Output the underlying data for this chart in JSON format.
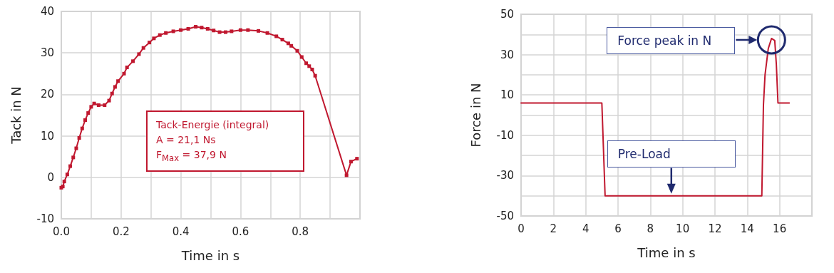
{
  "chart_data": [
    {
      "type": "line",
      "xlabel": "Time in s",
      "ylabel": "Tack in N",
      "x": [
        0.0,
        0.005,
        0.01,
        0.02,
        0.03,
        0.04,
        0.05,
        0.06,
        0.07,
        0.08,
        0.09,
        0.1,
        0.11,
        0.125,
        0.145,
        0.16,
        0.17,
        0.18,
        0.19,
        0.21,
        0.22,
        0.24,
        0.26,
        0.275,
        0.295,
        0.31,
        0.33,
        0.35,
        0.375,
        0.4,
        0.425,
        0.45,
        0.47,
        0.49,
        0.51,
        0.53,
        0.55,
        0.57,
        0.6,
        0.625,
        0.66,
        0.69,
        0.72,
        0.74,
        0.76,
        0.77,
        0.79,
        0.805,
        0.82,
        0.83,
        0.84,
        0.85,
        0.955,
        0.97,
        0.99
      ],
      "series": [
        {
          "color": "#c0182f",
          "values": [
            -2.5,
            -2.2,
            -1,
            0.7,
            2.7,
            4.8,
            7,
            9.5,
            11.8,
            13.8,
            15.5,
            17,
            17.8,
            17.4,
            17.4,
            18.5,
            20.2,
            21.8,
            23.2,
            25,
            26.5,
            28,
            29.7,
            31.2,
            32.5,
            33.5,
            34.3,
            34.8,
            35.2,
            35.5,
            35.8,
            36.3,
            36.1,
            35.8,
            35.4,
            35,
            35,
            35.2,
            35.5,
            35.5,
            35.3,
            34.8,
            34,
            33.2,
            32.3,
            31.7,
            30.5,
            29,
            27.5,
            26.8,
            26,
            24.5,
            0.5,
            3.8,
            4.5
          ]
        }
      ],
      "xlim": [
        0,
        1
      ],
      "xticks": [
        {
          "value": 0,
          "label": "0.0"
        },
        {
          "value": 0.1,
          "label": null
        },
        {
          "value": 0.2,
          "label": "0.2"
        },
        {
          "value": 0.3,
          "label": null
        },
        {
          "value": 0.4,
          "label": "0.4"
        },
        {
          "value": 0.5,
          "label": null
        },
        {
          "value": 0.6,
          "label": "0.6"
        },
        {
          "value": 0.7,
          "label": null
        },
        {
          "value": 0.8,
          "label": "0.8"
        },
        {
          "value": 0.9,
          "label": null
        },
        {
          "value": 1,
          "label": null
        }
      ],
      "ylim": [
        -10,
        40
      ],
      "yticks": [
        -10,
        0,
        10,
        20,
        30,
        40
      ],
      "grid": true,
      "marker": "square",
      "line_style": "solid",
      "annotations": [
        "Tack-Energie (integral)",
        "A = 21,1 Ns",
        "F$_{Max}$ = 37,9 N"
      ]
    },
    {
      "type": "line",
      "xlabel": "Time in s",
      "ylabel": "Force in N",
      "x": [
        0,
        5,
        5.2,
        14.9,
        15.0,
        15.1,
        15.3,
        15.5,
        15.7,
        15.8,
        15.9,
        16.6
      ],
      "series": [
        {
          "color": "#c0182f",
          "values": [
            6,
            6,
            -40,
            -40,
            5,
            20,
            33,
            38,
            37,
            25,
            6,
            6
          ]
        }
      ],
      "xlim": [
        0,
        18
      ],
      "xticks": [
        0,
        2,
        4,
        6,
        8,
        10,
        12,
        14,
        16,
        {
          "value": 18,
          "label": null
        }
      ],
      "ylim": [
        -50,
        50
      ],
      "yticks": [
        -50,
        {
          "value": -40,
          "label": null
        },
        -30,
        {
          "value": -20,
          "label": null
        },
        -10,
        {
          "value": 0,
          "label": null
        },
        10,
        {
          "value": 20,
          "label": null
        },
        30,
        {
          "value": 40,
          "label": null
        },
        50
      ],
      "grid": true,
      "marker": "none",
      "line_style": "solid",
      "annotations": [
        "Force peak in N",
        {
          "text": "Pre-Load",
          "x": 9.3,
          "y": -40
        }
      ]
    }
  ]
}
